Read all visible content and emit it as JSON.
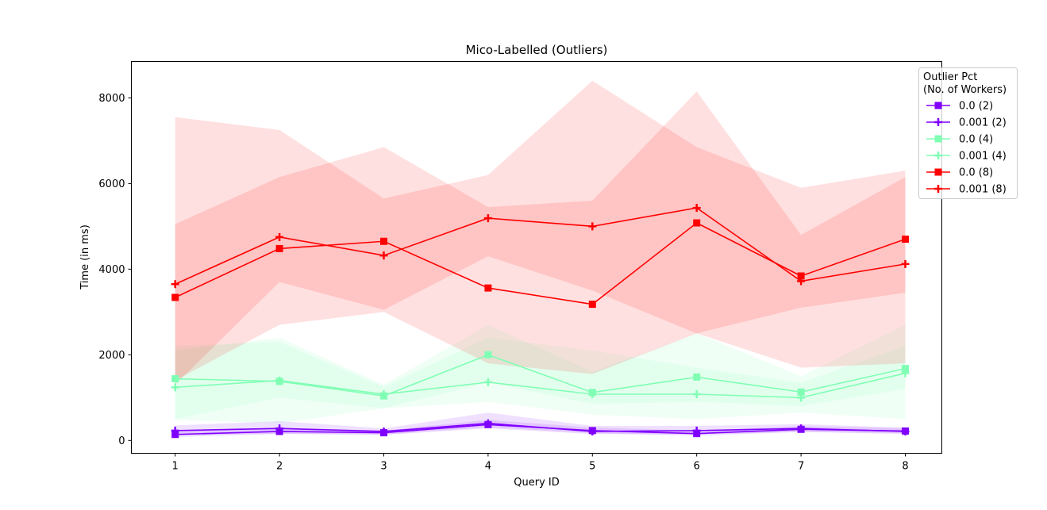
{
  "chart_data": {
    "type": "line",
    "title": "Mico-Labelled (Outliers)",
    "xlabel": "Query ID",
    "ylabel": "Time (in ms)",
    "x": [
      1,
      2,
      3,
      4,
      5,
      6,
      7,
      8
    ],
    "xlim": [
      0.58,
      8.35
    ],
    "ylim": [
      -300,
      8850
    ],
    "xticks": [
      1,
      2,
      3,
      4,
      5,
      6,
      7,
      8
    ],
    "yticks": [
      0,
      2000,
      4000,
      6000,
      8000
    ],
    "grid": false,
    "legend": {
      "title": "Outlier Pct\n(No. of Workers)",
      "title_lines": [
        "Outlier Pct",
        "(No. of Workers)"
      ],
      "placement": "top-right, outside axes"
    },
    "series": [
      {
        "name": "0.0 (2)",
        "color": "#8000ff",
        "marker": "square",
        "values": [
          140,
          210,
          180,
          370,
          230,
          160,
          260,
          220
        ],
        "band_lower": [
          80,
          150,
          140,
          310,
          170,
          110,
          200,
          170
        ],
        "band_upper": [
          220,
          300,
          230,
          480,
          300,
          230,
          330,
          290
        ]
      },
      {
        "name": "0.001 (2)",
        "color": "#8000ff",
        "marker": "plus",
        "values": [
          230,
          280,
          210,
          400,
          210,
          230,
          280,
          210
        ],
        "band_lower": [
          120,
          160,
          130,
          280,
          150,
          140,
          200,
          150
        ],
        "band_upper": [
          350,
          450,
          280,
          650,
          340,
          340,
          380,
          300
        ]
      },
      {
        "name": "0.0 (4)",
        "color": "#80ffb4",
        "marker": "square",
        "values": [
          1440,
          1380,
          1040,
          2000,
          1120,
          1480,
          1130,
          1680
        ],
        "band_lower": [
          500,
          1000,
          750,
          1350,
          850,
          900,
          800,
          1200
        ],
        "band_upper": [
          2100,
          2400,
          1300,
          2700,
          1600,
          2500,
          1500,
          2700
        ]
      },
      {
        "name": "0.001 (4)",
        "color": "#80ffb4",
        "marker": "plus",
        "values": [
          1240,
          1400,
          1080,
          1360,
          1080,
          1080,
          1000,
          1570
        ],
        "band_lower": [
          480,
          400,
          750,
          900,
          600,
          500,
          650,
          500
        ],
        "band_upper": [
          2200,
          2300,
          1250,
          2400,
          2100,
          1700,
          1350,
          2200
        ]
      },
      {
        "name": "0.0 (8)",
        "color": "#ff0000",
        "marker": "square",
        "values": [
          3340,
          4480,
          4650,
          3560,
          3180,
          5080,
          3840,
          4700
        ],
        "band_lower": [
          1400,
          2700,
          3000,
          1800,
          1550,
          2500,
          1700,
          1800
        ],
        "band_upper": [
          5050,
          6150,
          6850,
          5450,
          5600,
          8150,
          4800,
          6150
        ]
      },
      {
        "name": "0.001 (8)",
        "color": "#ff0000",
        "marker": "plus",
        "values": [
          3650,
          4750,
          4320,
          5190,
          5000,
          5430,
          3720,
          4120
        ],
        "band_lower": [
          1300,
          3700,
          3050,
          4300,
          3500,
          2500,
          3100,
          3450
        ],
        "band_upper": [
          7550,
          7250,
          5650,
          6200,
          8400,
          6850,
          5900,
          6300
        ]
      }
    ]
  }
}
